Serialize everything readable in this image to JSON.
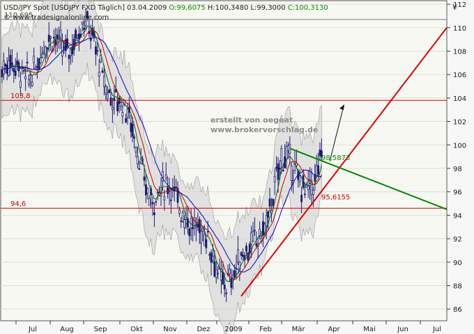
{
  "header": {
    "instrument": "USD/JPY Spot [USDJPY FXD",
    "period": "Täglich]",
    "date": "03.04.2009",
    "open": "O:99,6075",
    "high": "H:100,3480",
    "low": "L:99,3000",
    "close": "C:100,3130",
    "source": "© www.tradesignalonline.com",
    "yen_symbol": "¥"
  },
  "watermark": {
    "line1": "erstellt von oegeat",
    "line2": "www.brokervorschlag.de"
  },
  "colors": {
    "background": "#f8f8f2",
    "candles": "#1a1a6e",
    "band": "#d2d2d2",
    "ma_red": "#cc0000",
    "ma_blue": "#0000cc",
    "ma_green": "#006600",
    "support_line": "#dd0000",
    "resistance_line": "#008800",
    "horizontal_line": "#cc0000"
  },
  "chart_data": {
    "type": "candlestick",
    "title": "USD/JPY Spot [USDJPY FXD Täglich]",
    "x_ticks": [
      "Jul",
      "Aug",
      "Sep",
      "Okt",
      "Nov",
      "Dez",
      "2009",
      "Feb",
      "Mär",
      "Apr",
      "Mai",
      "Jun",
      "Jul"
    ],
    "y_ticks": [
      86,
      88,
      90,
      92,
      94,
      96,
      98,
      100,
      102,
      104,
      106,
      108,
      110,
      112
    ],
    "ylim": [
      85,
      113
    ],
    "grid": true,
    "levels": [
      {
        "label": "110,695",
        "value": 110.695
      },
      {
        "label": "103,8",
        "value": 103.8
      },
      {
        "label": "94,6",
        "value": 94.6
      }
    ],
    "annotations": [
      "98,5873",
      "95,6155"
    ],
    "monthly_path": [
      {
        "t": "2008-06",
        "v": 106
      },
      {
        "t": "2008-07",
        "v": 108
      },
      {
        "t": "2008-08",
        "v": 110
      },
      {
        "t": "2008-09",
        "v": 104
      },
      {
        "t": "2008-10",
        "v": 96
      },
      {
        "t": "2008-11",
        "v": 95
      },
      {
        "t": "2008-12",
        "v": 89
      },
      {
        "t": "2009-01",
        "v": 90
      },
      {
        "t": "2009-02",
        "v": 98
      },
      {
        "t": "2009-03",
        "v": 97
      },
      {
        "t": "2009-04-03",
        "v": 100.3
      }
    ]
  }
}
